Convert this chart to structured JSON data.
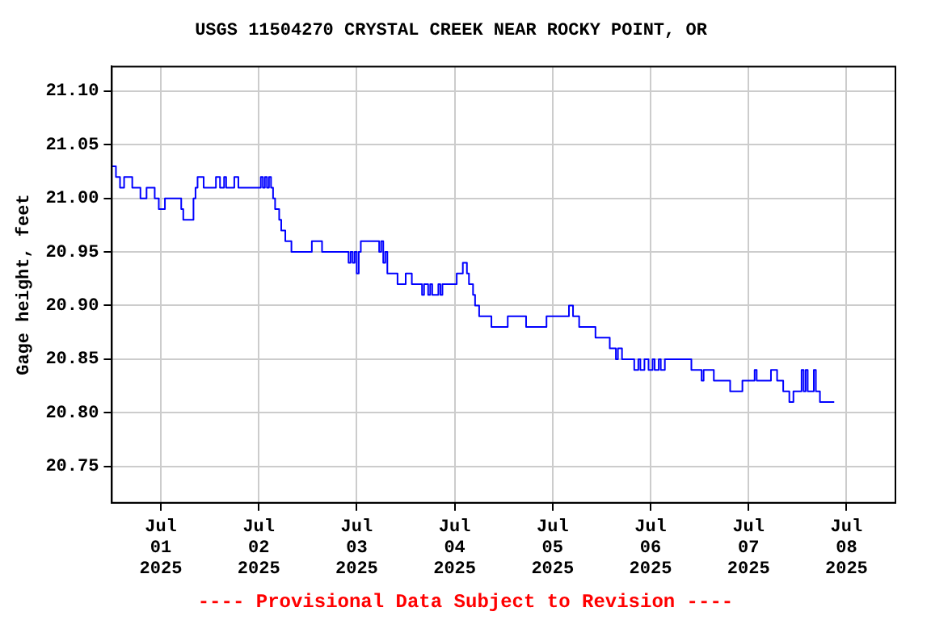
{
  "chart_data": {
    "type": "step",
    "title": "USGS 11504270 CRYSTAL CREEK NEAR ROCKY POINT, OR",
    "ylabel": "Gage height, feet",
    "annotations": [
      "---- Provisional Data Subject to Revision ----"
    ],
    "x": [
      "2025-06-30T12:00",
      "2025-06-30T13:00",
      "2025-06-30T14:00",
      "2025-06-30T15:00",
      "2025-06-30T17:00",
      "2025-06-30T19:00",
      "2025-06-30T20:30",
      "2025-06-30T22:30",
      "2025-06-30T23:30",
      "2025-07-01T01:00",
      "2025-07-01T05:00",
      "2025-07-01T05:30",
      "2025-07-01T08:00",
      "2025-07-01T08:30",
      "2025-07-01T09:00",
      "2025-07-01T10:30",
      "2025-07-01T13:30",
      "2025-07-01T14:30",
      "2025-07-01T15:30",
      "2025-07-01T16:00",
      "2025-07-01T18:00",
      "2025-07-01T19:00",
      "2025-07-02T00:30",
      "2025-07-02T01:00",
      "2025-07-02T01:30",
      "2025-07-02T02:00",
      "2025-07-02T02:30",
      "2025-07-02T03:00",
      "2025-07-02T03:30",
      "2025-07-02T04:00",
      "2025-07-02T05:00",
      "2025-07-02T05:30",
      "2025-07-02T06:30",
      "2025-07-02T08:00",
      "2025-07-02T13:00",
      "2025-07-02T15:30",
      "2025-07-02T22:00",
      "2025-07-02T22:30",
      "2025-07-02T23:00",
      "2025-07-02T23:30",
      "2025-07-03T00:00",
      "2025-07-03T00:30",
      "2025-07-03T01:00",
      "2025-07-03T05:30",
      "2025-07-03T06:00",
      "2025-07-03T06:30",
      "2025-07-03T07:00",
      "2025-07-03T07:30",
      "2025-07-03T08:00",
      "2025-07-03T10:00",
      "2025-07-03T12:00",
      "2025-07-03T13:30",
      "2025-07-03T16:00",
      "2025-07-03T16:30",
      "2025-07-03T17:30",
      "2025-07-03T18:00",
      "2025-07-03T18:30",
      "2025-07-03T20:00",
      "2025-07-03T20:30",
      "2025-07-03T21:00",
      "2025-07-04T00:30",
      "2025-07-04T02:00",
      "2025-07-04T03:00",
      "2025-07-04T03:30",
      "2025-07-04T04:30",
      "2025-07-04T05:00",
      "2025-07-04T06:00",
      "2025-07-04T09:00",
      "2025-07-04T13:00",
      "2025-07-04T17:30",
      "2025-07-04T22:30",
      "2025-07-05T04:00",
      "2025-07-05T05:00",
      "2025-07-05T06:30",
      "2025-07-05T10:30",
      "2025-07-05T14:00",
      "2025-07-05T15:30",
      "2025-07-05T16:00",
      "2025-07-05T17:00",
      "2025-07-05T20:00",
      "2025-07-05T21:00",
      "2025-07-05T21:30",
      "2025-07-05T22:30",
      "2025-07-05T23:30",
      "2025-07-06T00:30",
      "2025-07-06T01:00",
      "2025-07-06T02:00",
      "2025-07-06T02:30",
      "2025-07-06T03:30",
      "2025-07-06T10:00",
      "2025-07-06T12:30",
      "2025-07-06T13:00",
      "2025-07-06T15:30",
      "2025-07-06T19:30",
      "2025-07-06T22:30",
      "2025-07-07T01:30",
      "2025-07-07T02:00",
      "2025-07-07T05:30",
      "2025-07-07T07:00",
      "2025-07-07T08:30",
      "2025-07-07T10:00",
      "2025-07-07T11:00",
      "2025-07-07T13:00",
      "2025-07-07T13:30",
      "2025-07-07T14:00",
      "2025-07-07T14:30",
      "2025-07-07T16:00",
      "2025-07-07T16:30",
      "2025-07-07T17:30",
      "2025-07-07T21:00"
    ],
    "values": [
      21.03,
      21.02,
      21.01,
      21.02,
      21.01,
      21.0,
      21.01,
      21.0,
      20.99,
      21.0,
      20.99,
      20.98,
      21.0,
      21.01,
      21.02,
      21.01,
      21.02,
      21.01,
      21.02,
      21.01,
      21.02,
      21.01,
      21.02,
      21.01,
      21.02,
      21.01,
      21.02,
      21.01,
      21.0,
      20.99,
      20.98,
      20.97,
      20.96,
      20.95,
      20.96,
      20.95,
      20.94,
      20.95,
      20.94,
      20.95,
      20.93,
      20.95,
      20.96,
      20.95,
      20.96,
      20.94,
      20.95,
      20.93,
      20.93,
      20.92,
      20.93,
      20.92,
      20.91,
      20.92,
      20.91,
      20.92,
      20.91,
      20.92,
      20.91,
      20.92,
      20.93,
      20.94,
      20.93,
      20.92,
      20.91,
      20.9,
      20.89,
      20.88,
      20.89,
      20.88,
      20.89,
      20.9,
      20.89,
      20.88,
      20.87,
      20.86,
      20.85,
      20.86,
      20.85,
      20.84,
      20.85,
      20.84,
      20.85,
      20.84,
      20.85,
      20.84,
      20.85,
      20.84,
      20.85,
      20.84,
      20.83,
      20.84,
      20.83,
      20.82,
      20.83,
      20.84,
      20.83,
      20.84,
      20.83,
      20.82,
      20.81,
      20.82,
      20.84,
      20.82,
      20.84,
      20.82,
      20.84,
      20.82,
      20.81,
      20.81
    ],
    "color": "#0000ff",
    "marker": "none",
    "xlim": [
      "2025-06-30T12:00",
      "2025-07-08T12:00"
    ],
    "xticks": [
      {
        "value": "2025-07-01",
        "label": "Jul\n01\n2025"
      },
      {
        "value": "2025-07-02",
        "label": "Jul\n02\n2025"
      },
      {
        "value": "2025-07-03",
        "label": "Jul\n03\n2025"
      },
      {
        "value": "2025-07-04",
        "label": "Jul\n04\n2025"
      },
      {
        "value": "2025-07-05",
        "label": "Jul\n05\n2025"
      },
      {
        "value": "2025-07-06",
        "label": "Jul\n06\n2025"
      },
      {
        "value": "2025-07-07",
        "label": "Jul\n07\n2025"
      },
      {
        "value": "2025-07-08",
        "label": "Jul\n08\n2025"
      }
    ],
    "ylim": [
      20.716,
      21.123
    ],
    "yticks": [
      {
        "value": 20.75,
        "label": "20.75"
      },
      {
        "value": 20.8,
        "label": "20.80"
      },
      {
        "value": 20.85,
        "label": "20.85"
      },
      {
        "value": 20.9,
        "label": "20.90"
      },
      {
        "value": 20.95,
        "label": "20.95"
      },
      {
        "value": 21.0,
        "label": "21.00"
      },
      {
        "value": 21.05,
        "label": "21.05"
      },
      {
        "value": 21.1,
        "label": "21.10"
      }
    ],
    "grid": true,
    "legend": false
  }
}
